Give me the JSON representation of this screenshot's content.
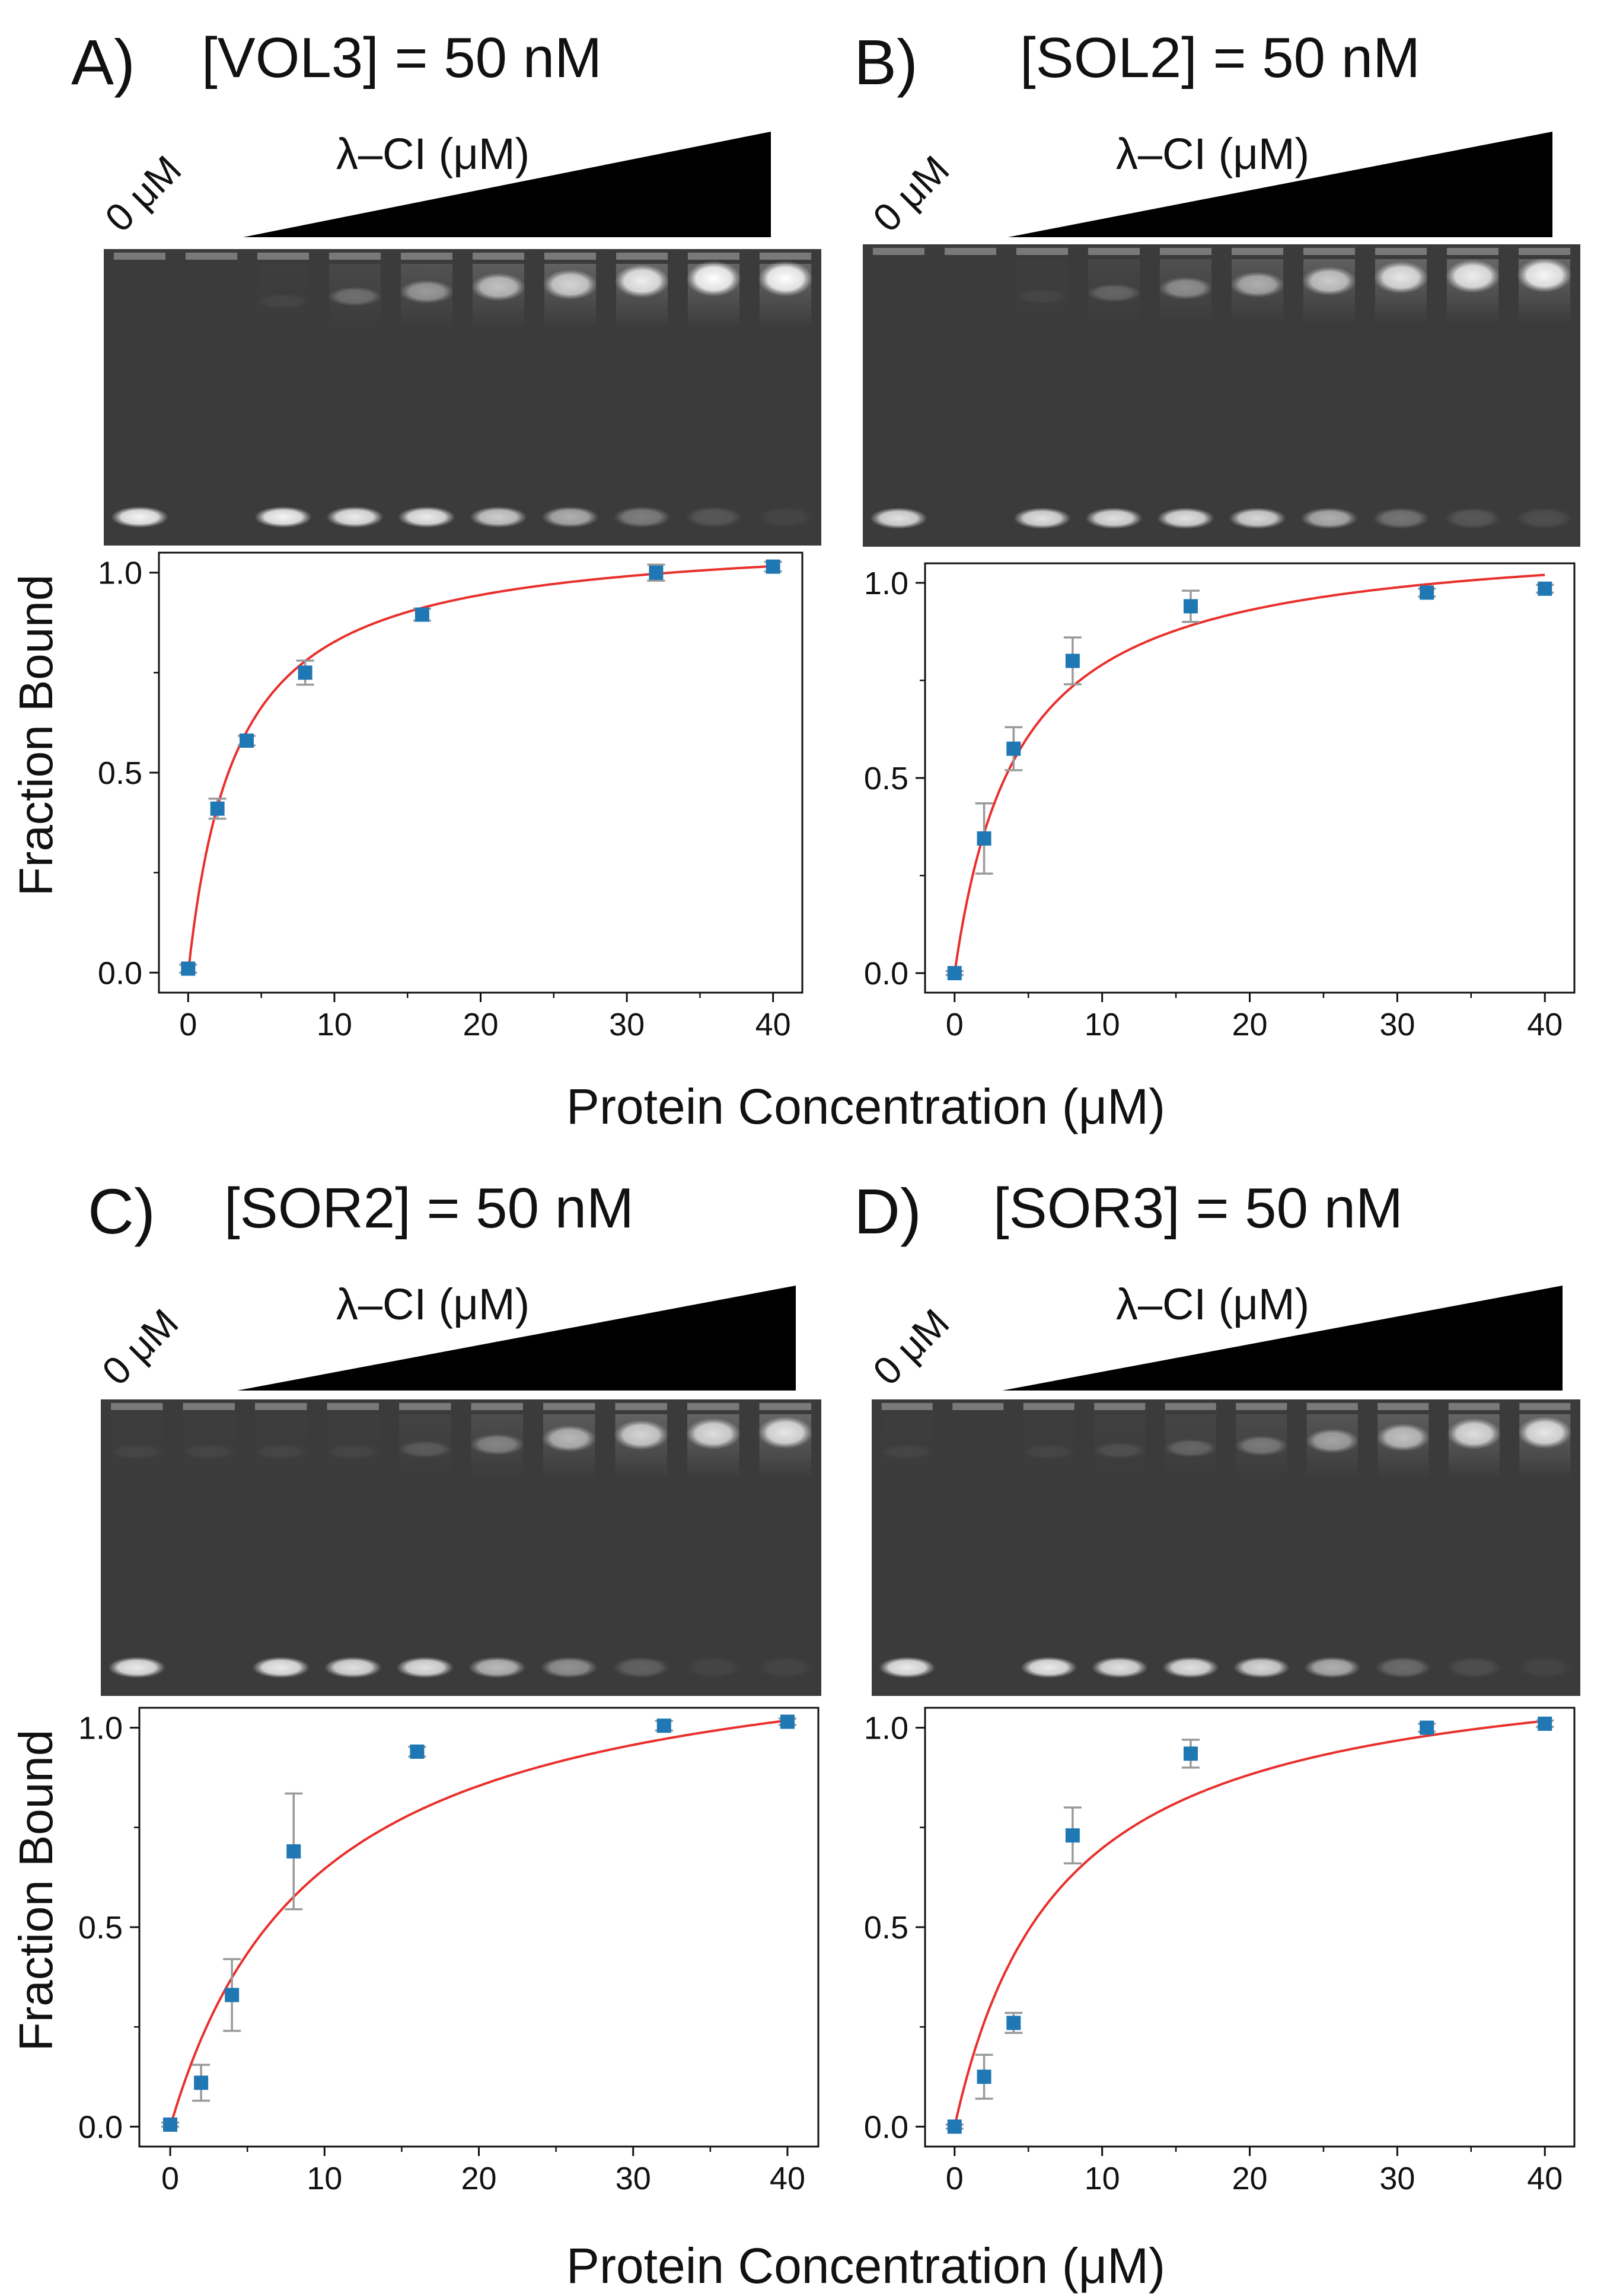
{
  "page": {
    "ylabel": "Fraction Bound",
    "xlabel": "Protein Concentration (μM)",
    "gel_zero_label": "0 μM",
    "gel_ramp_label": "λ–CI (μM)"
  },
  "colors": {
    "fit_line": "#e8302c",
    "marker": "#1f77b4",
    "errorbar": "#9a9a9a",
    "gel_background": "#3b3b3b",
    "gel_band": "#f2f2f2",
    "ramp": "#000000"
  },
  "panels": [
    {
      "letter": "A)",
      "title": "[VOL3] = 50 nM",
      "lanes": [
        {
          "free": 0.95,
          "bound": 0.0
        },
        {
          "free": 0.0,
          "bound": 0.0
        },
        {
          "free": 0.95,
          "bound": 0.05
        },
        {
          "free": 0.9,
          "bound": 0.25
        },
        {
          "free": 0.9,
          "bound": 0.45
        },
        {
          "free": 0.75,
          "bound": 0.65
        },
        {
          "free": 0.6,
          "bound": 0.75
        },
        {
          "free": 0.35,
          "bound": 0.9
        },
        {
          "free": 0.15,
          "bound": 1.0
        },
        {
          "free": 0.05,
          "bound": 1.0
        }
      ]
    },
    {
      "letter": "B)",
      "title": "[SOL2] = 50 nM",
      "lanes": [
        {
          "free": 0.85,
          "bound": 0.0
        },
        {
          "free": 0.0,
          "bound": 0.0
        },
        {
          "free": 0.85,
          "bound": 0.05
        },
        {
          "free": 0.85,
          "bound": 0.2
        },
        {
          "free": 0.85,
          "bound": 0.4
        },
        {
          "free": 0.8,
          "bound": 0.55
        },
        {
          "free": 0.6,
          "bound": 0.7
        },
        {
          "free": 0.3,
          "bound": 0.85
        },
        {
          "free": 0.15,
          "bound": 0.9
        },
        {
          "free": 0.1,
          "bound": 0.95
        }
      ]
    },
    {
      "letter": "C)",
      "title": "[SOR2] = 50 nM",
      "lanes": [
        {
          "free": 0.9,
          "bound": 0.05
        },
        {
          "free": 0.0,
          "bound": 0.05
        },
        {
          "free": 0.9,
          "bound": 0.05
        },
        {
          "free": 0.85,
          "bound": 0.05
        },
        {
          "free": 0.85,
          "bound": 0.15
        },
        {
          "free": 0.65,
          "bound": 0.35
        },
        {
          "free": 0.45,
          "bound": 0.6
        },
        {
          "free": 0.2,
          "bound": 0.75
        },
        {
          "free": 0.05,
          "bound": 0.8
        },
        {
          "free": 0.05,
          "bound": 0.85
        }
      ]
    },
    {
      "letter": "D)",
      "title": "[SOR3] = 50 nM",
      "lanes": [
        {
          "free": 0.9,
          "bound": 0.05
        },
        {
          "free": 0.0,
          "bound": 0.0
        },
        {
          "free": 0.9,
          "bound": 0.05
        },
        {
          "free": 0.85,
          "bound": 0.1
        },
        {
          "free": 0.85,
          "bound": 0.2
        },
        {
          "free": 0.8,
          "bound": 0.3
        },
        {
          "free": 0.6,
          "bound": 0.5
        },
        {
          "free": 0.25,
          "bound": 0.65
        },
        {
          "free": 0.1,
          "bound": 0.8
        },
        {
          "free": 0.05,
          "bound": 0.85
        }
      ]
    }
  ],
  "chart_data": [
    {
      "type": "scatter",
      "panel": "A",
      "xlabel": "Protein Concentration (μM)",
      "ylabel": "Fraction Bound",
      "xlim": [
        -2,
        42
      ],
      "ylim": [
        -0.05,
        1.05
      ],
      "xticks": [
        0,
        10,
        20,
        30,
        40
      ],
      "yticks": [
        0.0,
        0.5,
        1.0
      ],
      "ytick_labels": [
        "0.0",
        "0.5",
        "1.0"
      ],
      "points": {
        "x": [
          0,
          2,
          4,
          8,
          16,
          32,
          40
        ],
        "y": [
          0.01,
          0.41,
          0.58,
          0.75,
          0.895,
          1.0,
          1.015
        ],
        "err": [
          0.01,
          0.025,
          0.012,
          0.03,
          0.015,
          0.02,
          0.012
        ]
      },
      "fit": {
        "model": "hyperbolic",
        "bmax": 1.1,
        "kd": 3.3
      }
    },
    {
      "type": "scatter",
      "panel": "B",
      "xlabel": "Protein Concentration (μM)",
      "ylabel": "Fraction Bound",
      "xlim": [
        -2,
        42
      ],
      "ylim": [
        -0.05,
        1.05
      ],
      "xticks": [
        0,
        10,
        20,
        30,
        40
      ],
      "yticks": [
        0.0,
        0.5,
        1.0
      ],
      "ytick_labels": [
        "0.0",
        "0.5",
        "1.0"
      ],
      "points": {
        "x": [
          0,
          2,
          4,
          8,
          16,
          32,
          40
        ],
        "y": [
          0.0,
          0.345,
          0.575,
          0.8,
          0.94,
          0.975,
          0.985
        ],
        "err": [
          0.005,
          0.09,
          0.055,
          0.06,
          0.04,
          0.01,
          0.01
        ]
      },
      "fit": {
        "model": "hyperbolic",
        "bmax": 1.13,
        "kd": 4.3
      }
    },
    {
      "type": "scatter",
      "panel": "C",
      "xlabel": "Protein Concentration (μM)",
      "ylabel": "Fraction Bound",
      "xlim": [
        -2,
        42
      ],
      "ylim": [
        -0.05,
        1.05
      ],
      "xticks": [
        0,
        10,
        20,
        30,
        40
      ],
      "yticks": [
        0.0,
        0.5,
        1.0
      ],
      "ytick_labels": [
        "0.0",
        "0.5",
        "1.0"
      ],
      "points": {
        "x": [
          0,
          2,
          4,
          8,
          16,
          32,
          40
        ],
        "y": [
          0.005,
          0.11,
          0.33,
          0.69,
          0.94,
          1.005,
          1.015
        ],
        "err": [
          0.005,
          0.045,
          0.09,
          0.145,
          0.012,
          0.012,
          0.008
        ]
      },
      "fit": {
        "model": "hyperbolic",
        "bmax": 1.26,
        "kd": 9.5
      }
    },
    {
      "type": "scatter",
      "panel": "D",
      "xlabel": "Protein Concentration (μM)",
      "ylabel": "Fraction Bound",
      "xlim": [
        -2,
        42
      ],
      "ylim": [
        -0.05,
        1.05
      ],
      "xticks": [
        0,
        10,
        20,
        30,
        40
      ],
      "yticks": [
        0.0,
        0.5,
        1.0
      ],
      "ytick_labels": [
        "0.0",
        "0.5",
        "1.0"
      ],
      "points": {
        "x": [
          0,
          2,
          4,
          8,
          16,
          32,
          40
        ],
        "y": [
          0.0,
          0.125,
          0.26,
          0.73,
          0.935,
          1.0,
          1.01
        ],
        "err": [
          0.005,
          0.055,
          0.025,
          0.07,
          0.035,
          0.01,
          0.008
        ]
      },
      "fit": {
        "model": "hyperbolic",
        "bmax": 1.2,
        "kd": 7.2
      }
    }
  ]
}
